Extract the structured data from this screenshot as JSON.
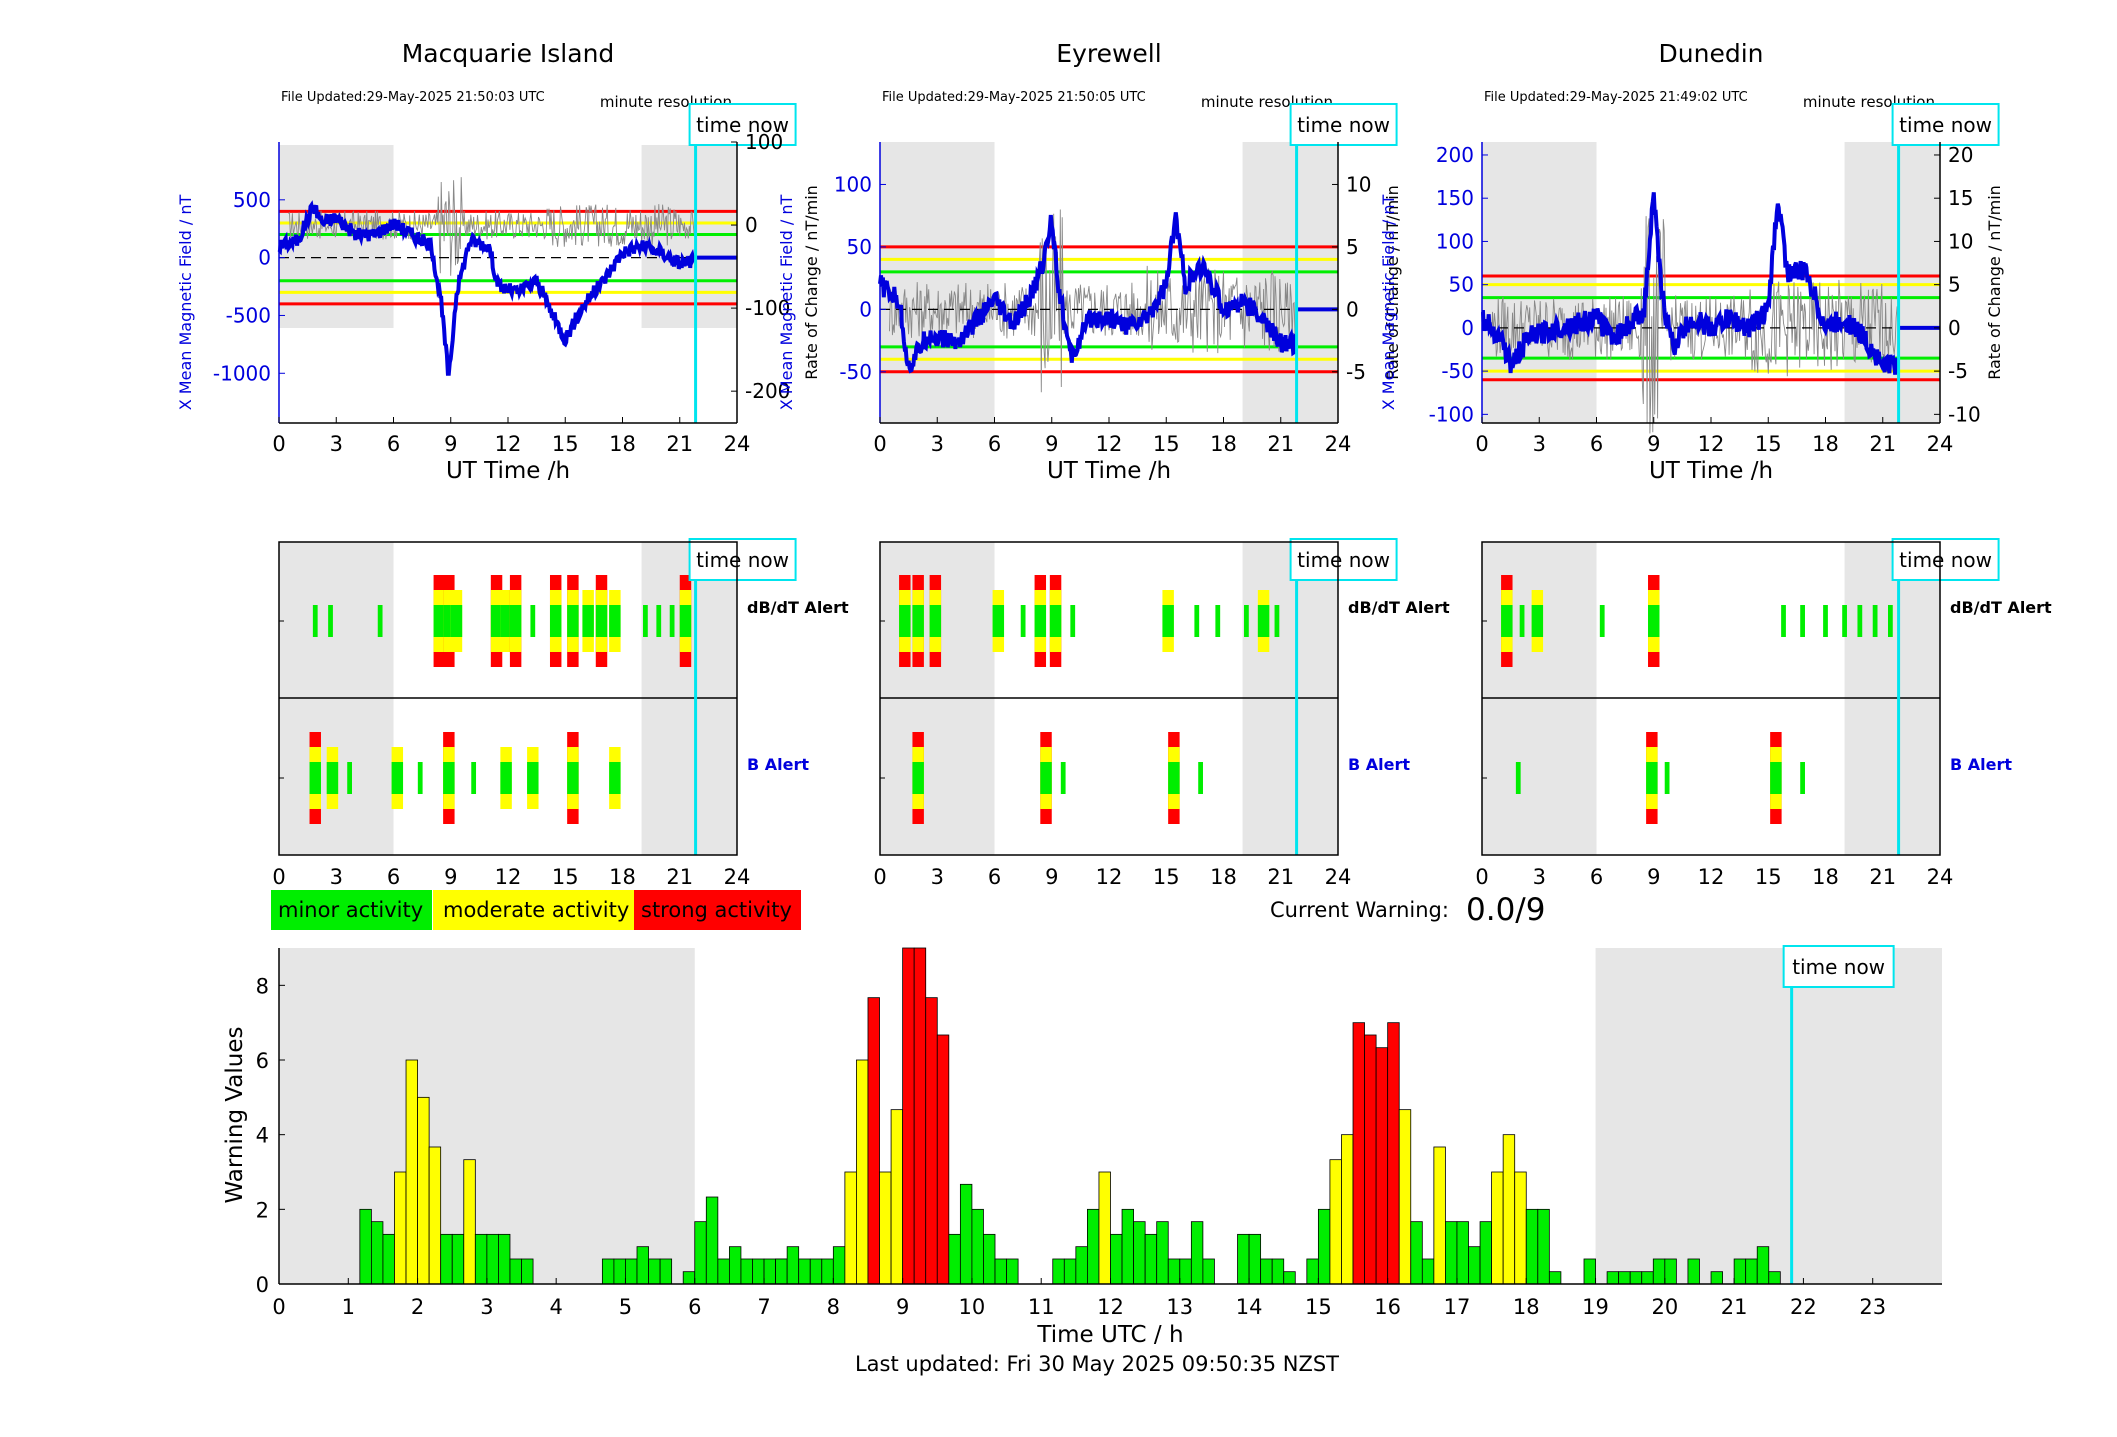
{
  "stations": [
    {
      "name": "Macquarie Island",
      "file_updated": "File Updated:29-May-2025 21:50:03 UTC",
      "resolution": "minute resolution",
      "time_now_label": "time now",
      "xlabel": "UT Time /h",
      "left_ylabel": "X Mean Magnetic Field / nT",
      "right_ylabel": "Rate of Change / nT/min",
      "left_ticks": [
        500,
        0,
        -500,
        -1000
      ],
      "right_ticks": [
        100,
        0,
        -100,
        -200
      ],
      "left_ylim": [
        -1430,
        1000
      ],
      "right_ylim": [
        -238.33,
        100.0
      ],
      "x_ticks": [
        0,
        3,
        6,
        9,
        12,
        15,
        18,
        21,
        24
      ],
      "time_now": 21.83,
      "thresholds": {
        "red": 400,
        "yellow": 300,
        "green": 200
      },
      "db_alert_label": "dB/dT Alert",
      "b_alert_label": "B Alert",
      "db_alerts": [
        {
          "x": 1.9,
          "level": 1
        },
        {
          "x": 2.7,
          "level": 1
        },
        {
          "x": 5.3,
          "level": 1
        },
        {
          "x": 8.4,
          "level": 3
        },
        {
          "x": 8.9,
          "level": 3
        },
        {
          "x": 9.3,
          "level": 2
        },
        {
          "x": 11.4,
          "level": 3
        },
        {
          "x": 11.9,
          "level": 2
        },
        {
          "x": 12.4,
          "level": 3
        },
        {
          "x": 13.3,
          "level": 1
        },
        {
          "x": 14.5,
          "level": 3
        },
        {
          "x": 15.4,
          "level": 3
        },
        {
          "x": 16.2,
          "level": 2
        },
        {
          "x": 16.9,
          "level": 3
        },
        {
          "x": 17.6,
          "level": 2
        },
        {
          "x": 19.2,
          "level": 1
        },
        {
          "x": 19.9,
          "level": 1
        },
        {
          "x": 20.6,
          "level": 1
        },
        {
          "x": 21.3,
          "level": 3
        }
      ],
      "b_alerts": [
        {
          "x": 1.9,
          "level": 3
        },
        {
          "x": 2.8,
          "level": 2
        },
        {
          "x": 3.7,
          "level": 1
        },
        {
          "x": 6.2,
          "level": 2
        },
        {
          "x": 7.4,
          "level": 1
        },
        {
          "x": 8.9,
          "level": 3
        },
        {
          "x": 10.2,
          "level": 1
        },
        {
          "x": 11.9,
          "level": 2
        },
        {
          "x": 13.3,
          "level": 2
        },
        {
          "x": 15.4,
          "level": 3
        },
        {
          "x": 17.6,
          "level": 2
        }
      ]
    },
    {
      "name": "Eyrewell",
      "file_updated": "File Updated:29-May-2025 21:50:05 UTC",
      "resolution": "minute resolution",
      "time_now_label": "time now",
      "xlabel": "UT Time /h",
      "left_ylabel": "X Mean Magnetic Field / nT",
      "right_ylabel": "Rate of Change / nT/min",
      "left_ticks": [
        100,
        50,
        0,
        -50
      ],
      "right_ticks": [
        10,
        5,
        0,
        -5
      ],
      "left_ylim": [
        -91,
        134
      ],
      "right_ylim": [
        -9.1,
        13.4
      ],
      "x_ticks": [
        0,
        3,
        6,
        9,
        12,
        15,
        18,
        21,
        24
      ],
      "time_now": 21.83,
      "thresholds": {
        "red": 50,
        "yellow": 40,
        "green": 30
      },
      "db_alert_label": "dB/dT Alert",
      "b_alert_label": "B Alert",
      "db_alerts": [
        {
          "x": 1.3,
          "level": 3
        },
        {
          "x": 2.0,
          "level": 3
        },
        {
          "x": 2.9,
          "level": 3
        },
        {
          "x": 6.2,
          "level": 2
        },
        {
          "x": 7.5,
          "level": 1
        },
        {
          "x": 8.4,
          "level": 3
        },
        {
          "x": 9.2,
          "level": 3
        },
        {
          "x": 10.1,
          "level": 1
        },
        {
          "x": 15.1,
          "level": 2
        },
        {
          "x": 16.6,
          "level": 1
        },
        {
          "x": 17.7,
          "level": 1
        },
        {
          "x": 19.2,
          "level": 1
        },
        {
          "x": 20.1,
          "level": 2
        },
        {
          "x": 20.8,
          "level": 1
        }
      ],
      "b_alerts": [
        {
          "x": 2.0,
          "level": 3
        },
        {
          "x": 8.7,
          "level": 3
        },
        {
          "x": 9.6,
          "level": 1
        },
        {
          "x": 15.4,
          "level": 3
        },
        {
          "x": 16.8,
          "level": 1
        }
      ]
    },
    {
      "name": "Dunedin",
      "file_updated": "File Updated:29-May-2025 21:49:02 UTC",
      "resolution": "minute resolution",
      "time_now_label": "time now",
      "xlabel": "UT Time /h",
      "left_ylabel": "X Mean Magnetic Field / nT",
      "right_ylabel": "Rate of Change / nT/min",
      "left_ticks": [
        200,
        150,
        100,
        50,
        0,
        -50,
        -100
      ],
      "right_ticks": [
        20,
        15,
        10,
        5,
        0,
        -5,
        -10
      ],
      "left_ylim": [
        -110,
        215
      ],
      "right_ylim": [
        -11.0,
        21.5
      ],
      "x_ticks": [
        0,
        3,
        6,
        9,
        12,
        15,
        18,
        21,
        24
      ],
      "time_now": 21.83,
      "thresholds": {
        "red": 60,
        "yellow": 50,
        "green": 35
      },
      "db_alert_label": "dB/dT Alert",
      "b_alert_label": "B Alert",
      "db_alerts": [
        {
          "x": 1.3,
          "level": 3
        },
        {
          "x": 2.1,
          "level": 1
        },
        {
          "x": 2.9,
          "level": 2
        },
        {
          "x": 6.3,
          "level": 1
        },
        {
          "x": 9.0,
          "level": 3
        },
        {
          "x": 15.8,
          "level": 1
        },
        {
          "x": 16.8,
          "level": 1
        },
        {
          "x": 18.0,
          "level": 1
        },
        {
          "x": 19.0,
          "level": 1
        },
        {
          "x": 19.8,
          "level": 1
        },
        {
          "x": 20.6,
          "level": 1
        },
        {
          "x": 21.4,
          "level": 1
        }
      ],
      "b_alerts": [
        {
          "x": 1.9,
          "level": 1
        },
        {
          "x": 8.9,
          "level": 3
        },
        {
          "x": 9.7,
          "level": 1
        },
        {
          "x": 15.4,
          "level": 3
        },
        {
          "x": 16.8,
          "level": 1
        }
      ]
    }
  ],
  "legend": {
    "minor": "minor activity",
    "moderate": "moderate activity",
    "strong": "strong activity",
    "colors": {
      "minor": "#00ee00",
      "moderate": "#ffff00",
      "strong": "#ff0000"
    }
  },
  "current_warning": {
    "label": "Current Warning:",
    "value": "0.0/9"
  },
  "chart_data": {
    "type": "bar",
    "ylabel": "Warning Values",
    "xlabel": "Time UTC / h",
    "ylim": [
      0,
      9
    ],
    "xlim": [
      0,
      24
    ],
    "y_ticks": [
      0,
      2,
      4,
      6,
      8
    ],
    "x_ticks": [
      0,
      1,
      2,
      3,
      4,
      5,
      6,
      7,
      8,
      9,
      10,
      11,
      12,
      13,
      14,
      15,
      16,
      17,
      18,
      19,
      20,
      21,
      22,
      23
    ],
    "bar_width_h": 0.1667,
    "time_now": 21.83,
    "time_now_label": "time now",
    "shaded_ranges": [
      [
        0,
        6
      ],
      [
        19,
        24
      ]
    ],
    "bars": [
      {
        "x": 1.25,
        "v": 2.0
      },
      {
        "x": 1.4167,
        "v": 1.67
      },
      {
        "x": 1.5833,
        "v": 1.33
      },
      {
        "x": 1.75,
        "v": 3.0
      },
      {
        "x": 1.9167,
        "v": 6.0
      },
      {
        "x": 2.0833,
        "v": 5.0
      },
      {
        "x": 2.25,
        "v": 3.67
      },
      {
        "x": 2.4167,
        "v": 1.33
      },
      {
        "x": 2.5833,
        "v": 1.33
      },
      {
        "x": 2.75,
        "v": 3.33
      },
      {
        "x": 2.9167,
        "v": 1.33
      },
      {
        "x": 3.0833,
        "v": 1.33
      },
      {
        "x": 3.25,
        "v": 1.33
      },
      {
        "x": 3.4167,
        "v": 0.67
      },
      {
        "x": 3.5833,
        "v": 0.67
      },
      {
        "x": 4.75,
        "v": 0.67
      },
      {
        "x": 4.9167,
        "v": 0.67
      },
      {
        "x": 5.0833,
        "v": 0.67
      },
      {
        "x": 5.25,
        "v": 1.0
      },
      {
        "x": 5.4167,
        "v": 0.67
      },
      {
        "x": 5.5833,
        "v": 0.67
      },
      {
        "x": 5.9167,
        "v": 0.33
      },
      {
        "x": 6.0833,
        "v": 1.67
      },
      {
        "x": 6.25,
        "v": 2.33
      },
      {
        "x": 6.4167,
        "v": 0.67
      },
      {
        "x": 6.5833,
        "v": 1.0
      },
      {
        "x": 6.75,
        "v": 0.67
      },
      {
        "x": 6.9167,
        "v": 0.67
      },
      {
        "x": 7.0833,
        "v": 0.67
      },
      {
        "x": 7.25,
        "v": 0.67
      },
      {
        "x": 7.25,
        "v": 0.67
      },
      {
        "x": 7.4167,
        "v": 1.0
      },
      {
        "x": 7.5833,
        "v": 0.67
      },
      {
        "x": 7.75,
        "v": 0.67
      },
      {
        "x": 7.9167,
        "v": 0.67
      },
      {
        "x": 8.0833,
        "v": 1.0
      },
      {
        "x": 8.25,
        "v": 3.0
      },
      {
        "x": 8.4167,
        "v": 6.0
      },
      {
        "x": 8.5833,
        "v": 7.67
      },
      {
        "x": 8.75,
        "v": 3.0
      },
      {
        "x": 8.9167,
        "v": 4.67
      },
      {
        "x": 9.0833,
        "v": 9.0
      },
      {
        "x": 9.25,
        "v": 9.0
      },
      {
        "x": 9.4167,
        "v": 7.67
      },
      {
        "x": 9.5833,
        "v": 6.67
      },
      {
        "x": 9.75,
        "v": 1.33
      },
      {
        "x": 9.9167,
        "v": 2.67
      },
      {
        "x": 10.0833,
        "v": 2.0
      },
      {
        "x": 10.25,
        "v": 1.33
      },
      {
        "x": 10.4167,
        "v": 0.67
      },
      {
        "x": 10.5833,
        "v": 0.67
      },
      {
        "x": 11.25,
        "v": 0.67
      },
      {
        "x": 11.4167,
        "v": 0.67
      },
      {
        "x": 11.5833,
        "v": 1.0
      },
      {
        "x": 11.75,
        "v": 2.0
      },
      {
        "x": 11.9167,
        "v": 3.0
      },
      {
        "x": 12.0833,
        "v": 1.33
      },
      {
        "x": 12.25,
        "v": 2.0
      },
      {
        "x": 12.4167,
        "v": 1.67
      },
      {
        "x": 12.5833,
        "v": 1.33
      },
      {
        "x": 12.75,
        "v": 1.67
      },
      {
        "x": 12.9167,
        "v": 0.67
      },
      {
        "x": 13.0833,
        "v": 0.67
      },
      {
        "x": 13.25,
        "v": 1.67
      },
      {
        "x": 13.4167,
        "v": 0.67
      },
      {
        "x": 13.9167,
        "v": 1.33
      },
      {
        "x": 14.0833,
        "v": 1.33
      },
      {
        "x": 14.25,
        "v": 0.67
      },
      {
        "x": 14.4167,
        "v": 0.67
      },
      {
        "x": 14.5833,
        "v": 0.33
      },
      {
        "x": 14.9167,
        "v": 0.67
      },
      {
        "x": 15.0833,
        "v": 2.0
      },
      {
        "x": 15.25,
        "v": 3.33
      },
      {
        "x": 15.4167,
        "v": 4.0
      },
      {
        "x": 15.5833,
        "v": 7.0
      },
      {
        "x": 15.75,
        "v": 6.67
      },
      {
        "x": 15.9167,
        "v": 6.33
      },
      {
        "x": 16.0833,
        "v": 7.0
      },
      {
        "x": 16.25,
        "v": 4.67
      },
      {
        "x": 16.4167,
        "v": 1.67
      },
      {
        "x": 16.5833,
        "v": 0.67
      },
      {
        "x": 16.75,
        "v": 3.67
      },
      {
        "x": 16.9167,
        "v": 1.67
      },
      {
        "x": 17.0833,
        "v": 1.67
      },
      {
        "x": 17.25,
        "v": 1.0
      },
      {
        "x": 17.4167,
        "v": 1.67
      },
      {
        "x": 17.5833,
        "v": 3.0
      },
      {
        "x": 17.75,
        "v": 4.0
      },
      {
        "x": 17.9167,
        "v": 3.0
      },
      {
        "x": 18.0833,
        "v": 2.0
      },
      {
        "x": 18.25,
        "v": 2.0
      },
      {
        "x": 18.4167,
        "v": 0.33
      },
      {
        "x": 18.9167,
        "v": 0.67
      },
      {
        "x": 19.25,
        "v": 0.33
      },
      {
        "x": 19.4167,
        "v": 0.33
      },
      {
        "x": 19.5833,
        "v": 0.33
      },
      {
        "x": 19.75,
        "v": 0.33
      },
      {
        "x": 19.9167,
        "v": 0.67
      },
      {
        "x": 20.0833,
        "v": 0.67
      },
      {
        "x": 20.4167,
        "v": 0.67
      },
      {
        "x": 20.75,
        "v": 0.33
      },
      {
        "x": 21.0833,
        "v": 0.67
      },
      {
        "x": 21.25,
        "v": 0.67
      },
      {
        "x": 21.4167,
        "v": 1.0
      },
      {
        "x": 21.5833,
        "v": 0.33
      }
    ],
    "level_thresholds": {
      "moderate": 3.0,
      "strong": 6.33
    }
  },
  "footer": {
    "last_updated": "Last updated: Fri 30 May 2025 09:50:35 NZST"
  }
}
